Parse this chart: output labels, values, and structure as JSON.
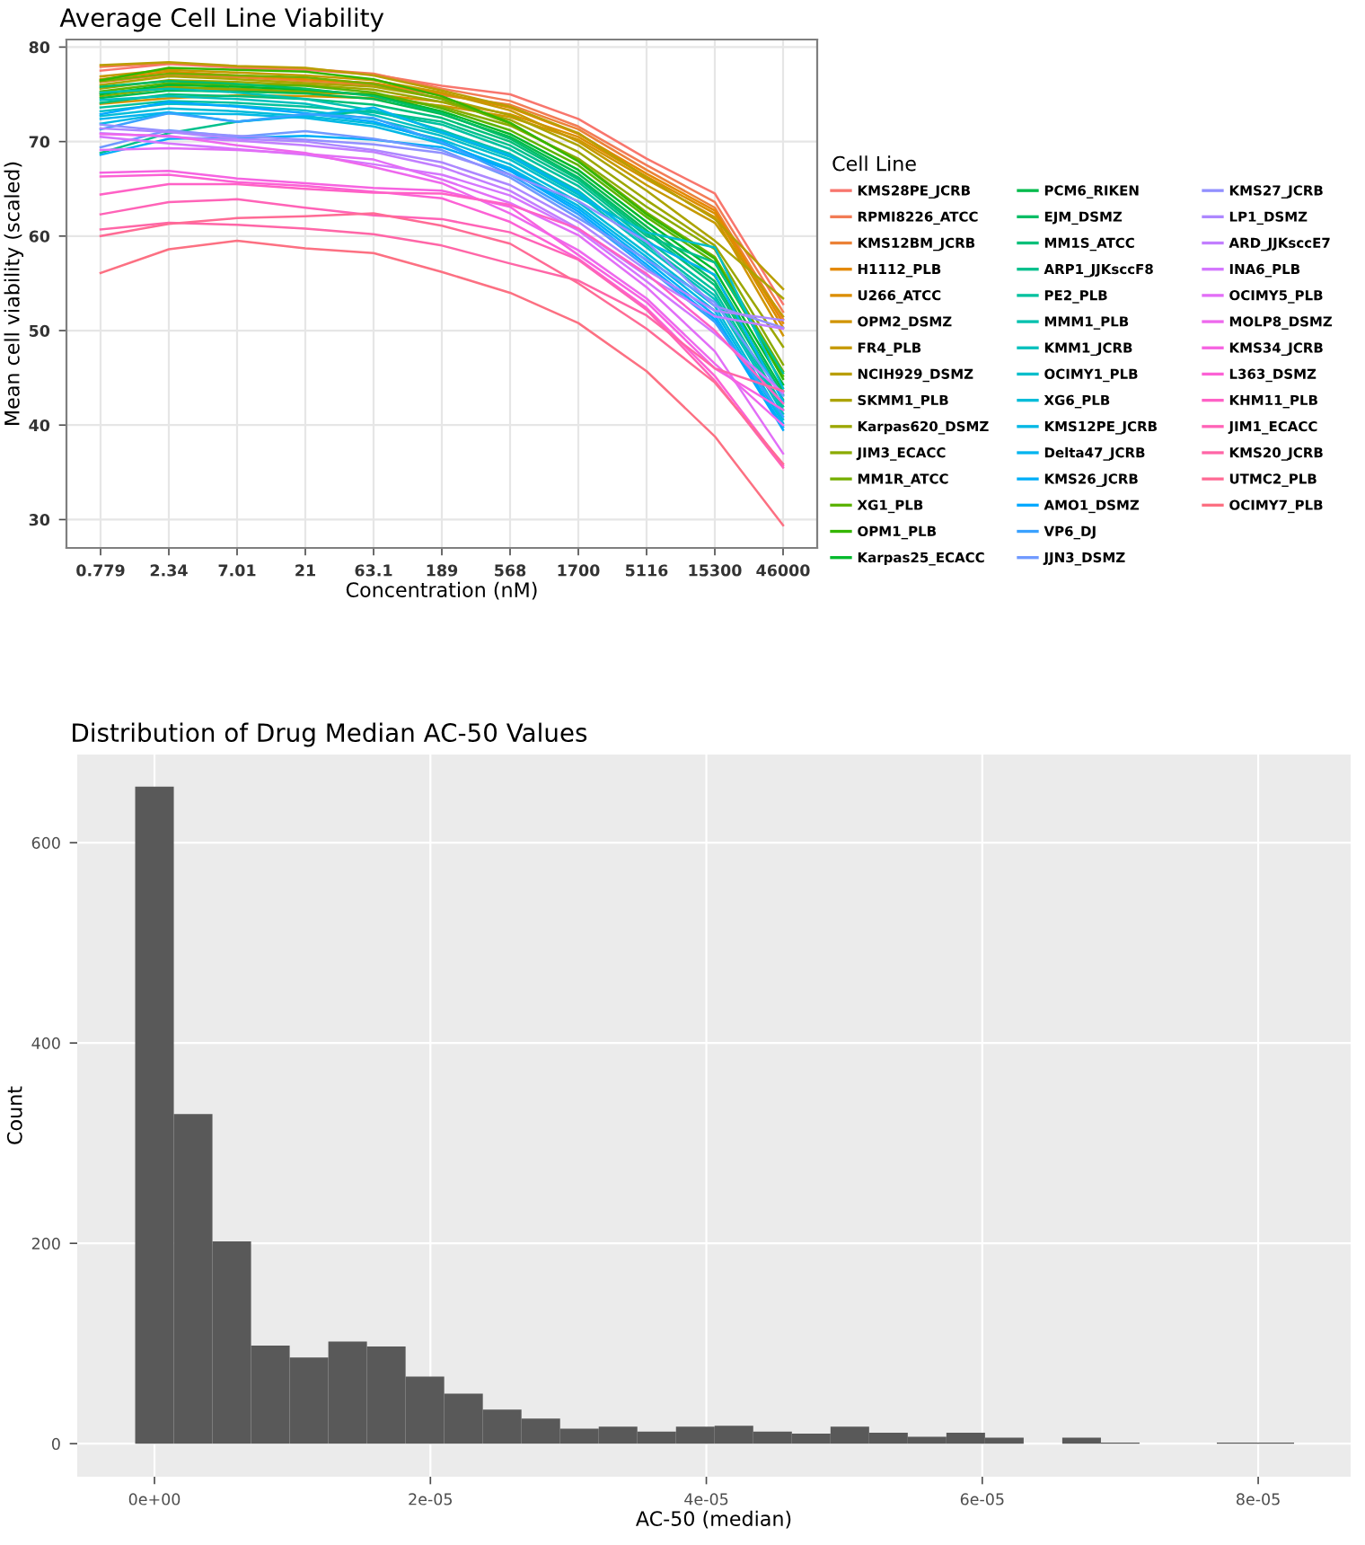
{
  "chart_data": [
    {
      "type": "line",
      "title": "Average Cell Line Viability",
      "xlabel": "Concentration (nM)",
      "ylabel": "Mean cell viability (scaled)",
      "legend_title": "Cell Line",
      "legend": "right",
      "grid": true,
      "categories": [
        "0.779",
        "2.34",
        "7.01",
        "21",
        "63.1",
        "189",
        "568",
        "1700",
        "5116",
        "15300",
        "46000"
      ],
      "ylim": [
        27,
        80.8
      ],
      "yticks": [
        30,
        40,
        50,
        60,
        70,
        80
      ],
      "series": [
        {
          "name": "KMS28PE_JCRB",
          "color": "#f8766d",
          "values": [
            77.5,
            78.2,
            77.8,
            77.6,
            77.1,
            75.9,
            75.0,
            72.4,
            68.2,
            64.5,
            52.8
          ]
        },
        {
          "name": "RPMI8226_ATCC",
          "color": "#f27c55",
          "values": [
            77.9,
            78.3,
            77.9,
            77.7,
            77.2,
            75.6,
            74.3,
            71.6,
            67.5,
            63.6,
            52.0
          ]
        },
        {
          "name": "KMS12BM_JCRB",
          "color": "#eb8237",
          "values": [
            76.3,
            77.1,
            76.8,
            76.4,
            76.0,
            74.9,
            73.9,
            71.3,
            67.0,
            63.0,
            51.2
          ]
        },
        {
          "name": "H1112_PLB",
          "color": "#e48800",
          "values": [
            76.6,
            77.4,
            77.0,
            76.6,
            76.2,
            75.1,
            73.6,
            70.8,
            66.6,
            62.7,
            50.8
          ]
        },
        {
          "name": "U266_ATCC",
          "color": "#db8e00",
          "values": [
            75.1,
            75.8,
            75.4,
            75.2,
            75.0,
            74.2,
            72.9,
            70.5,
            66.3,
            62.4,
            50.3
          ]
        },
        {
          "name": "OPM2_DSMZ",
          "color": "#d19400",
          "values": [
            74.0,
            74.6,
            74.9,
            74.8,
            74.6,
            73.8,
            72.6,
            70.2,
            66.0,
            62.0,
            49.5
          ]
        },
        {
          "name": "FR4_PLB",
          "color": "#c69900",
          "values": [
            76.9,
            77.6,
            77.3,
            77.0,
            76.5,
            75.2,
            73.3,
            70.0,
            65.4,
            61.4,
            51.5
          ]
        },
        {
          "name": "NCIH929_DSMZ",
          "color": "#b99e00",
          "values": [
            78.1,
            78.4,
            78.0,
            77.8,
            77.0,
            75.4,
            73.7,
            70.9,
            66.2,
            61.8,
            54.4
          ]
        },
        {
          "name": "SKMM1_PLB",
          "color": "#aca300",
          "values": [
            76.0,
            76.9,
            76.6,
            76.2,
            75.8,
            74.6,
            72.8,
            69.6,
            64.8,
            59.5,
            53.4
          ]
        },
        {
          "name": "Karpas620_DSMZ",
          "color": "#9ca700",
          "values": [
            75.6,
            76.5,
            76.3,
            76.0,
            75.5,
            74.2,
            72.3,
            68.9,
            63.8,
            59.0,
            48.3
          ]
        },
        {
          "name": "JIM3_ECACC",
          "color": "#8bab00",
          "values": [
            74.8,
            75.7,
            75.6,
            75.3,
            75.0,
            73.7,
            71.7,
            68.2,
            63.1,
            58.6,
            46.4
          ]
        },
        {
          "name": "MM1R_ATCC",
          "color": "#76af00",
          "values": [
            76.4,
            77.2,
            77.0,
            76.8,
            76.1,
            74.5,
            71.9,
            68.0,
            62.5,
            57.8,
            45.7
          ]
        },
        {
          "name": "XG1_PLB",
          "color": "#5cb300",
          "values": [
            75.3,
            76.2,
            76.0,
            75.9,
            75.2,
            73.5,
            71.2,
            67.5,
            62.0,
            57.2,
            45.2
          ]
        },
        {
          "name": "OPM1_PLB",
          "color": "#34b600",
          "values": [
            76.5,
            77.8,
            77.6,
            77.4,
            76.6,
            74.8,
            72.0,
            67.9,
            62.3,
            57.6,
            44.9
          ]
        },
        {
          "name": "Karpas25_ECACC",
          "color": "#00b92b",
          "values": [
            75.0,
            76.0,
            75.8,
            75.5,
            74.9,
            73.2,
            70.8,
            67.0,
            61.5,
            56.4,
            44.3
          ]
        },
        {
          "name": "PCM6_RIKEN",
          "color": "#00bb4c",
          "values": [
            74.6,
            75.4,
            75.3,
            75.1,
            74.5,
            72.9,
            70.5,
            66.6,
            61.0,
            55.8,
            43.6
          ]
        },
        {
          "name": "EJM_DSMZ",
          "color": "#00bd65",
          "values": [
            75.8,
            76.4,
            76.1,
            75.6,
            74.8,
            73.0,
            70.3,
            66.2,
            60.6,
            55.2,
            43.2
          ]
        },
        {
          "name": "MM1S_ATCC",
          "color": "#00bf79",
          "values": [
            74.1,
            75.0,
            74.8,
            74.5,
            73.9,
            72.5,
            70.0,
            66.0,
            60.3,
            54.8,
            42.7
          ]
        },
        {
          "name": "ARP1_JJKsccF8",
          "color": "#00c08c",
          "values": [
            68.8,
            70.9,
            72.1,
            72.8,
            73.2,
            72.1,
            69.6,
            65.7,
            60.0,
            57.2,
            45.5
          ]
        },
        {
          "name": "PE2_PLB",
          "color": "#00c19e",
          "values": [
            73.6,
            74.3,
            74.1,
            73.7,
            73.1,
            71.8,
            69.2,
            65.3,
            59.6,
            54.2,
            42.0
          ]
        },
        {
          "name": "MMM1_PLB",
          "color": "#00c1ae",
          "values": [
            75.2,
            75.6,
            75.2,
            74.5,
            73.3,
            71.2,
            68.7,
            64.8,
            59.1,
            53.7,
            41.6
          ]
        },
        {
          "name": "KMM1_JCRB",
          "color": "#00c0bd",
          "values": [
            74.4,
            74.8,
            74.5,
            74.0,
            72.8,
            70.9,
            68.4,
            64.4,
            58.8,
            53.3,
            41.2
          ]
        },
        {
          "name": "OCIMY1_PLB",
          "color": "#00becb",
          "values": [
            73.2,
            74.0,
            73.8,
            73.3,
            72.4,
            70.6,
            68.1,
            64.1,
            60.4,
            58.8,
            43.9
          ]
        },
        {
          "name": "XG6_PLB",
          "color": "#00bcd9",
          "values": [
            72.7,
            73.5,
            73.2,
            72.7,
            71.9,
            70.2,
            67.6,
            63.6,
            58.2,
            52.6,
            40.6
          ]
        },
        {
          "name": "KMS12PE_JCRB",
          "color": "#00b8e5",
          "values": [
            71.9,
            73.0,
            72.9,
            72.5,
            71.6,
            69.8,
            67.2,
            63.2,
            57.8,
            52.1,
            40.2
          ]
        },
        {
          "name": "Delta47_JCRB",
          "color": "#00b4ef",
          "values": [
            72.4,
            73.1,
            72.1,
            72.7,
            73.6,
            71.0,
            68.5,
            64.6,
            59.4,
            55.9,
            42.5
          ]
        },
        {
          "name": "KMS26_JCRB",
          "color": "#00aff8",
          "values": [
            68.6,
            70.3,
            70.4,
            70.6,
            70.2,
            69.4,
            67.0,
            62.9,
            57.4,
            51.6,
            39.8
          ]
        },
        {
          "name": "AMO1_DSMZ",
          "color": "#00a9ff",
          "values": [
            72.9,
            74.2,
            73.7,
            73.0,
            72.1,
            70.0,
            66.9,
            62.6,
            57.0,
            51.2,
            39.5
          ]
        },
        {
          "name": "VP6_DJ",
          "color": "#39a1ff",
          "values": [
            71.3,
            73.0,
            72.1,
            72.9,
            72.5,
            69.9,
            66.5,
            62.3,
            56.7,
            50.9,
            40.9
          ]
        },
        {
          "name": "JJN3_DSMZ",
          "color": "#6f99ff",
          "values": [
            69.4,
            71.2,
            70.5,
            71.1,
            70.3,
            69.1,
            66.2,
            61.9,
            57.5,
            53.0,
            43.1
          ]
        },
        {
          "name": "KMS27_JCRB",
          "color": "#9290ff",
          "values": [
            71.8,
            71.1,
            70.6,
            70.2,
            69.7,
            68.8,
            66.5,
            63.7,
            59.4,
            52.6,
            50.3
          ]
        },
        {
          "name": "LP1_DSMZ",
          "color": "#ad87ff",
          "values": [
            71.4,
            71.0,
            70.3,
            70.0,
            69.1,
            67.8,
            65.4,
            61.5,
            56.4,
            52.1,
            51.1
          ]
        },
        {
          "name": "ARD_JJKsccE7",
          "color": "#c27eff",
          "values": [
            70.9,
            70.5,
            70.1,
            69.6,
            68.9,
            67.3,
            64.8,
            60.8,
            55.8,
            51.5,
            50.2
          ]
        },
        {
          "name": "INA6_PLB",
          "color": "#d476fe",
          "values": [
            70.5,
            69.8,
            69.2,
            68.6,
            67.6,
            66.5,
            64.3,
            60.6,
            55.2,
            49.7,
            43.4
          ]
        },
        {
          "name": "OCIMY5_PLB",
          "color": "#e26ef7",
          "values": [
            69.1,
            69.3,
            69.1,
            68.7,
            68.1,
            66.0,
            63.5,
            60.1,
            54.6,
            47.8,
            37.0
          ]
        },
        {
          "name": "MOLP8_DSMZ",
          "color": "#ee68ed",
          "values": [
            70.8,
            70.6,
            69.6,
            68.8,
            67.3,
            65.6,
            62.4,
            58.5,
            53.4,
            46.5,
            40.0
          ]
        },
        {
          "name": "KMS34_JCRB",
          "color": "#f663e1",
          "values": [
            66.7,
            66.9,
            66.1,
            65.6,
            65.1,
            64.8,
            63.1,
            58.0,
            53.0,
            46.0,
            41.6
          ]
        },
        {
          "name": "L363_DSMZ",
          "color": "#fc61d5",
          "values": [
            66.3,
            66.5,
            65.7,
            65.3,
            64.7,
            64.0,
            61.5,
            57.6,
            52.4,
            45.2,
            35.7
          ]
        },
        {
          "name": "KHM11_PLB",
          "color": "#ff61c6",
          "values": [
            64.4,
            65.5,
            65.5,
            65.0,
            64.6,
            64.5,
            63.3,
            60.8,
            56.0,
            50.0,
            42.3
          ]
        },
        {
          "name": "JIM1_ECACC",
          "color": "#ff63b7",
          "values": [
            62.3,
            63.6,
            63.9,
            63.0,
            62.2,
            61.8,
            60.4,
            57.5,
            52.2,
            44.7,
            35.5
          ]
        },
        {
          "name": "KMS20_JCRB",
          "color": "#ff66a7",
          "values": [
            60.7,
            61.4,
            61.2,
            60.8,
            60.2,
            59.0,
            57.1,
            55.3,
            51.6,
            46.0,
            43.6
          ]
        },
        {
          "name": "UTMC2_PLB",
          "color": "#ff6b95",
          "values": [
            60.0,
            61.3,
            61.9,
            62.1,
            62.4,
            61.1,
            59.2,
            55.0,
            50.2,
            44.5,
            35.9
          ]
        },
        {
          "name": "OCIMY7_PLB",
          "color": "#fc7082",
          "values": [
            56.1,
            58.6,
            59.5,
            58.7,
            58.2,
            56.2,
            54.0,
            50.8,
            45.7,
            38.8,
            29.4
          ]
        }
      ]
    },
    {
      "type": "histogram",
      "title": "Distribution of Drug Median AC-50 Values",
      "xlabel": "AC-50 (median)",
      "ylabel": "Count",
      "grid": true,
      "color": "#595959",
      "bins": [
        -1.4e-06,
        1.4e-06,
        4.2e-06,
        7e-06,
        9.8e-06,
        1.26e-05,
        1.54e-05,
        1.82e-05,
        2.1e-05,
        2.38e-05,
        2.66e-05,
        2.94e-05,
        3.22e-05,
        3.5e-05,
        3.78e-05,
        4.06e-05,
        4.34e-05,
        4.62e-05,
        4.9e-05,
        5.18e-05,
        5.46e-05,
        5.74e-05,
        6.02e-05,
        6.3e-05,
        6.58e-05,
        6.86e-05,
        7.14e-05,
        7.42e-05,
        7.7e-05,
        7.98e-05,
        8.26e-05
      ],
      "values": [
        656,
        329,
        202,
        98,
        86,
        102,
        97,
        67,
        50,
        34,
        25,
        15,
        17,
        12,
        17,
        18,
        12,
        10,
        17,
        11,
        7,
        11,
        6,
        0,
        6,
        1,
        0,
        0,
        1,
        1
      ],
      "xlim": [
        -5.6e-06,
        8.67e-05
      ],
      "xticks": [
        {
          "value": 0,
          "label": "0e+00"
        },
        {
          "value": 2e-05,
          "label": "2e-05"
        },
        {
          "value": 4e-05,
          "label": "4e-05"
        },
        {
          "value": 6e-05,
          "label": "6e-05"
        },
        {
          "value": 8e-05,
          "label": "8e-05"
        }
      ],
      "ylim": [
        -33,
        688
      ],
      "yticks": [
        0,
        200,
        400,
        600
      ]
    }
  ]
}
